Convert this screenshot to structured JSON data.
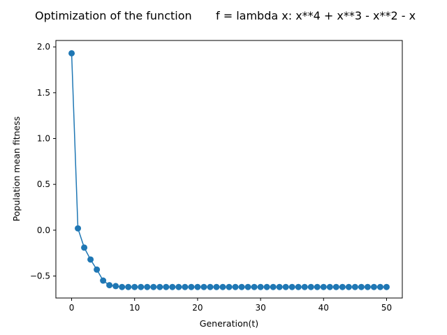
{
  "chart_data": {
    "type": "line",
    "title_left": "Optimization of the function",
    "title_right": "f = lambda x: x**4 + x**3 - x**2 - x",
    "xlabel": "Generation(t)",
    "ylabel": "Population mean fitness",
    "xlim": [
      -2.5,
      52.5
    ],
    "ylim": [
      -0.74,
      2.07
    ],
    "xticks": [
      0,
      10,
      20,
      30,
      40,
      50
    ],
    "xtick_labels": [
      "0",
      "10",
      "20",
      "30",
      "40",
      "50"
    ],
    "yticks": [
      -0.5,
      0.0,
      0.5,
      1.0,
      1.5,
      2.0
    ],
    "ytick_labels": [
      "−0.5",
      "0.0",
      "0.5",
      "1.0",
      "1.5",
      "2.0"
    ],
    "grid": false,
    "color": "#1f77b4",
    "marker": "circle",
    "series": [
      {
        "x": [
          0,
          1,
          2,
          3,
          4,
          5,
          6,
          7,
          8,
          9,
          10,
          11,
          12,
          13,
          14,
          15,
          16,
          17,
          18,
          19,
          20,
          21,
          22,
          23,
          24,
          25,
          26,
          27,
          28,
          29,
          30,
          31,
          32,
          33,
          34,
          35,
          36,
          37,
          38,
          39,
          40,
          41,
          42,
          43,
          44,
          45,
          46,
          47,
          48,
          49,
          50
        ],
        "y": [
          1.93,
          0.02,
          -0.19,
          -0.32,
          -0.43,
          -0.55,
          -0.6,
          -0.61,
          -0.62,
          -0.62,
          -0.62,
          -0.62,
          -0.62,
          -0.62,
          -0.62,
          -0.62,
          -0.62,
          -0.62,
          -0.62,
          -0.62,
          -0.62,
          -0.62,
          -0.62,
          -0.62,
          -0.62,
          -0.62,
          -0.62,
          -0.62,
          -0.62,
          -0.62,
          -0.62,
          -0.62,
          -0.62,
          -0.62,
          -0.62,
          -0.62,
          -0.62,
          -0.62,
          -0.62,
          -0.62,
          -0.62,
          -0.62,
          -0.62,
          -0.62,
          -0.62,
          -0.62,
          -0.62,
          -0.62,
          -0.62,
          -0.62,
          -0.62
        ]
      }
    ]
  }
}
